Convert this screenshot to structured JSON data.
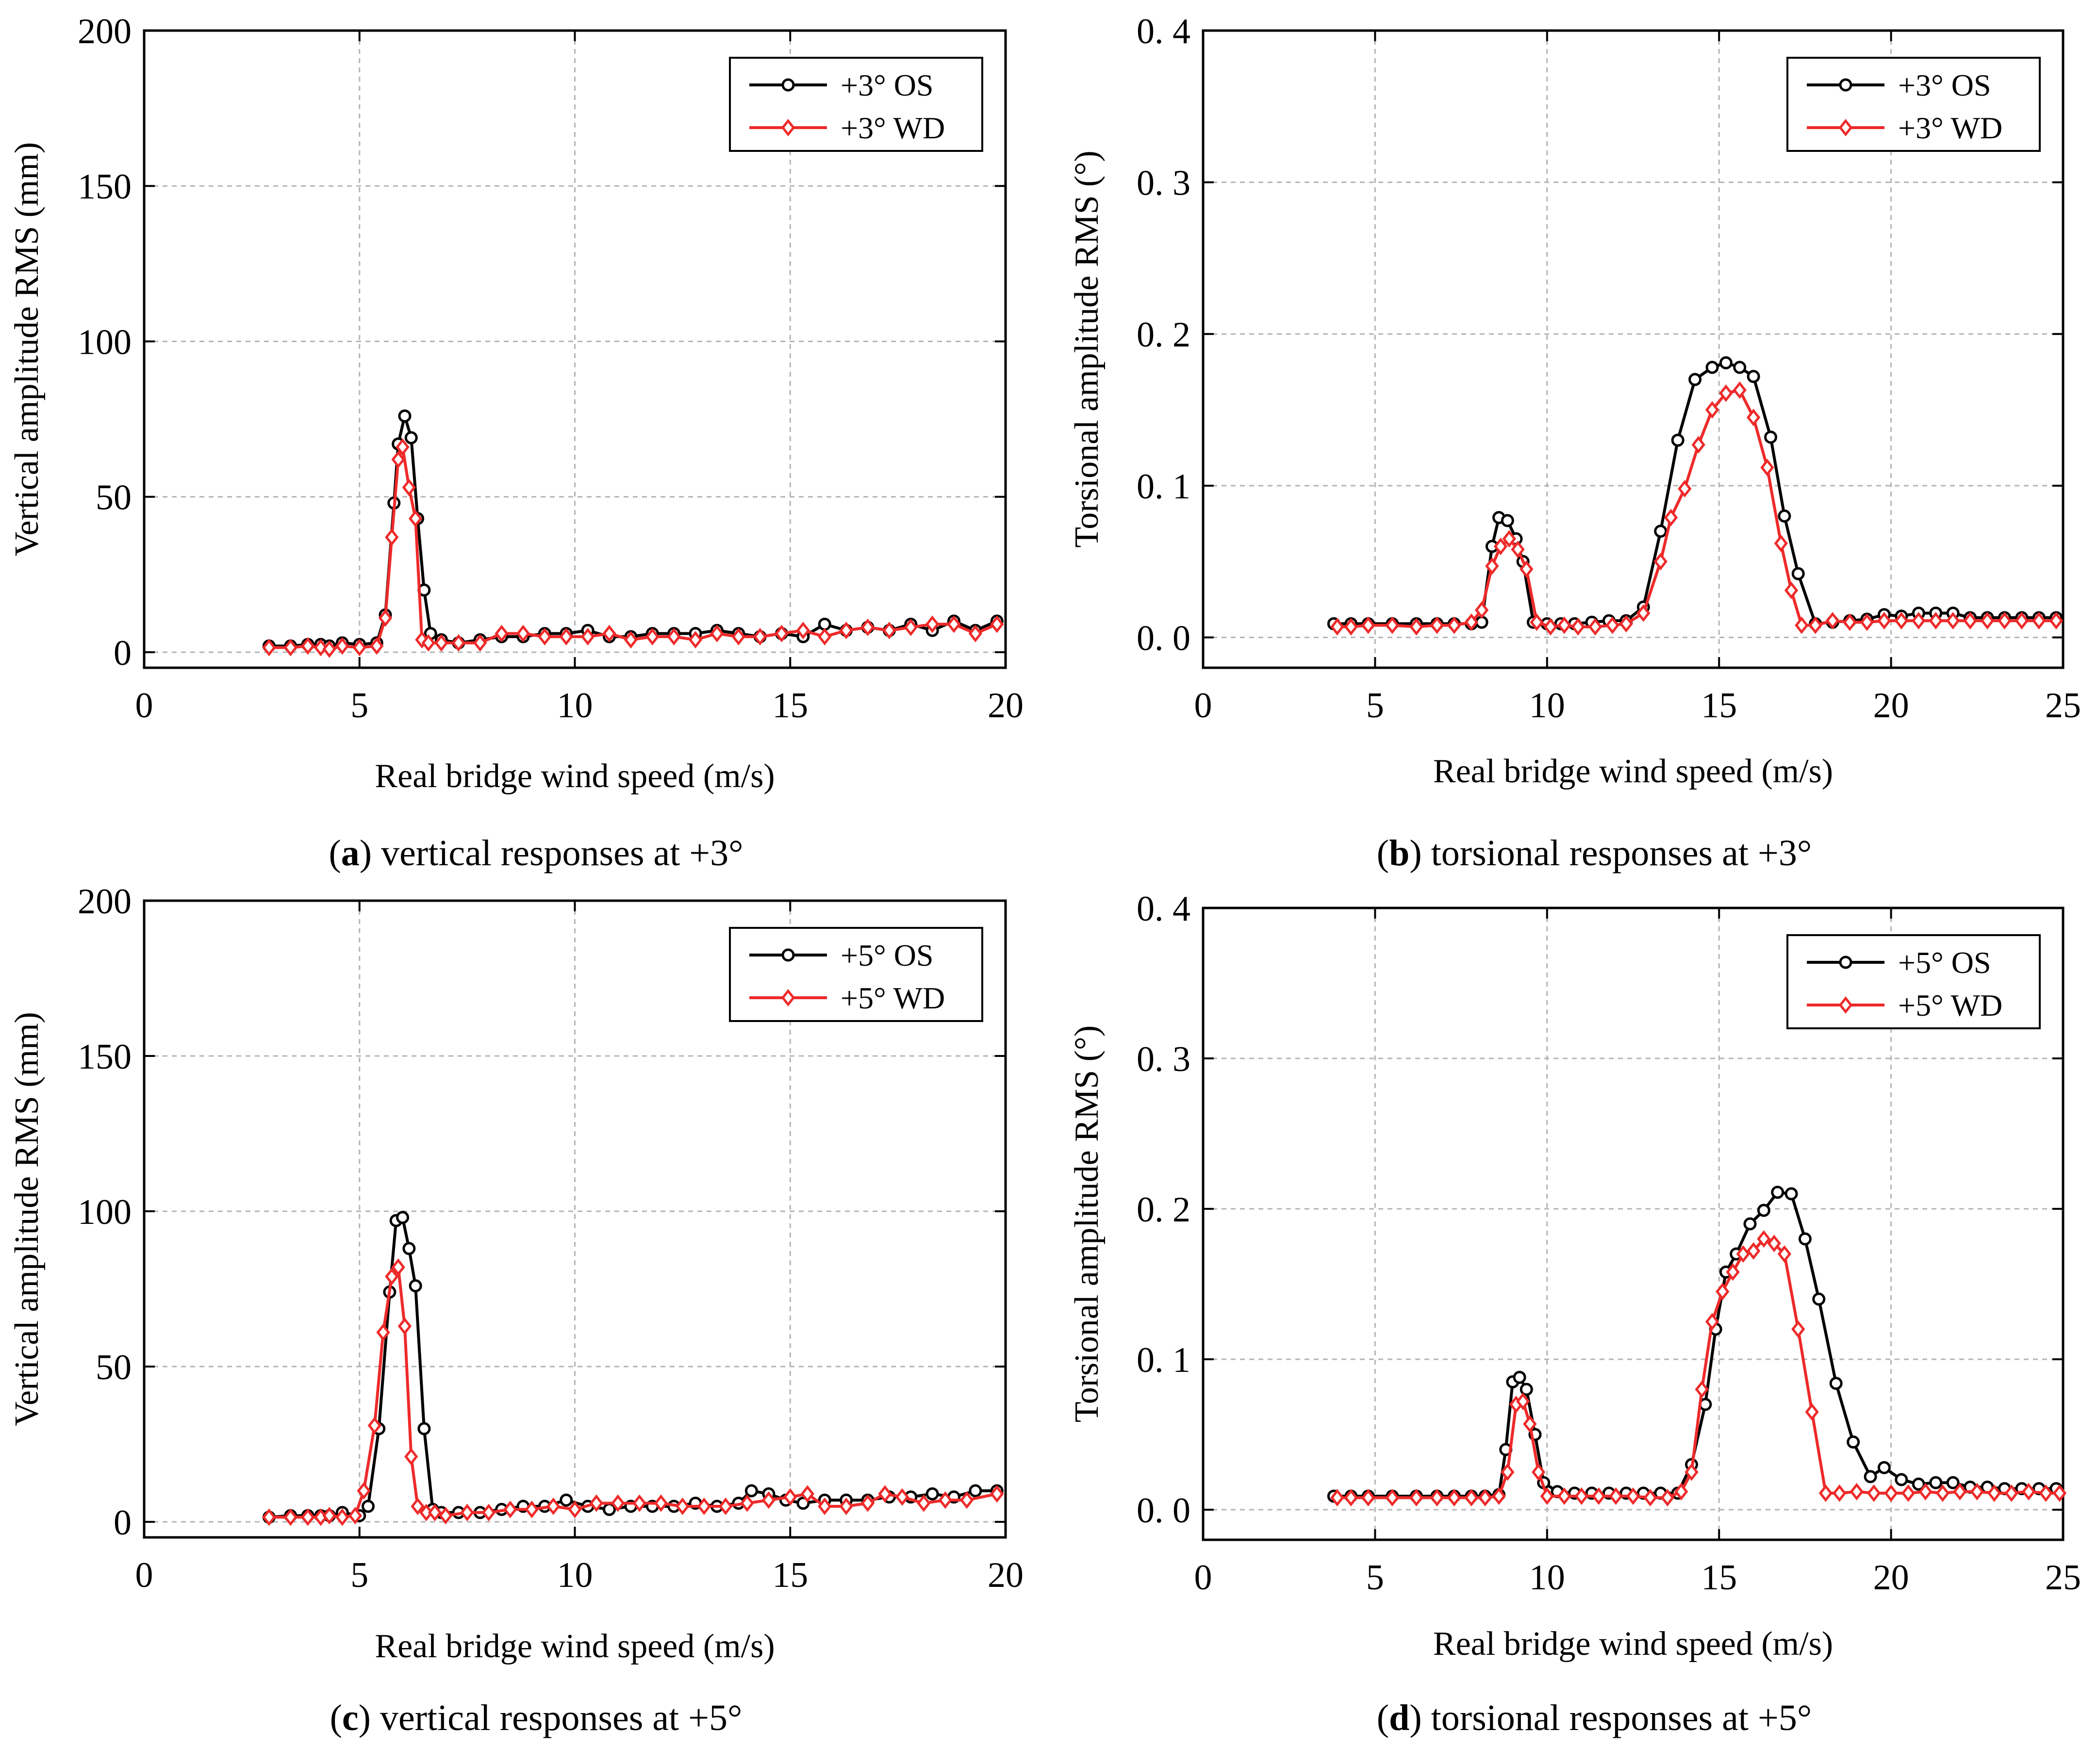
{
  "figure": {
    "colors": {
      "os": "#000000",
      "wd": "#ee2a2a",
      "grid": "#b4b4b4"
    }
  },
  "chart_data": [
    {
      "id": "a",
      "type": "line",
      "caption": {
        "letter": "a",
        "text": "vertical responses at +3°"
      },
      "xlabel": "Real bridge wind speed (m/s)",
      "ylabel": "Vertical amplitude RMS (mm)",
      "xlim": [
        0,
        20
      ],
      "ylim": [
        -5,
        200
      ],
      "xticks": [
        0,
        5,
        10,
        15,
        20
      ],
      "yticks": [
        0,
        50,
        100,
        150,
        200
      ],
      "ytick_labels": [
        "0",
        "50",
        "100",
        "150",
        "200"
      ],
      "grid": true,
      "legend": "top-right",
      "series": [
        {
          "name": "+3° OS",
          "color": "#000000",
          "marker": "circle",
          "x": [
            2.9,
            3.4,
            3.8,
            4.1,
            4.3,
            4.6,
            5.0,
            5.4,
            5.6,
            5.8,
            5.9,
            6.05,
            6.2,
            6.35,
            6.5,
            6.65,
            6.9,
            7.3,
            7.8,
            8.3,
            8.8,
            9.3,
            9.8,
            10.3,
            10.8,
            11.3,
            11.8,
            12.3,
            12.8,
            13.3,
            13.8,
            14.3,
            14.8,
            15.3,
            15.8,
            16.3,
            16.8,
            17.3,
            17.8,
            18.3,
            18.8,
            19.3,
            19.8
          ],
          "y": [
            2,
            2,
            2.5,
            2.5,
            2,
            3,
            2.5,
            3,
            12,
            48,
            67,
            76,
            69,
            43,
            20,
            6,
            4,
            3,
            4,
            5,
            5,
            6,
            6,
            7,
            5,
            5,
            6,
            6,
            6,
            7,
            6,
            5,
            6,
            5,
            9,
            7,
            8,
            7,
            9,
            7,
            10,
            7,
            10
          ]
        },
        {
          "name": "+3° WD",
          "color": "#ee2a2a",
          "marker": "diamond",
          "x": [
            2.9,
            3.4,
            3.8,
            4.1,
            4.3,
            4.6,
            5.0,
            5.4,
            5.6,
            5.75,
            5.9,
            6.0,
            6.15,
            6.3,
            6.45,
            6.6,
            6.9,
            7.3,
            7.8,
            8.3,
            8.8,
            9.3,
            9.8,
            10.3,
            10.8,
            11.3,
            11.8,
            12.3,
            12.8,
            13.3,
            13.8,
            14.3,
            14.8,
            15.3,
            15.8,
            16.3,
            16.8,
            17.3,
            17.8,
            18.3,
            18.8,
            19.3,
            19.8
          ],
          "y": [
            1.5,
            1.5,
            2,
            1.5,
            1,
            2,
            1.5,
            2,
            11,
            37,
            62,
            66,
            53,
            43,
            4,
            3,
            3,
            3,
            3,
            6,
            6,
            5,
            5,
            5,
            6,
            4,
            5,
            5,
            4,
            6,
            5,
            5,
            6,
            7,
            5,
            7,
            8,
            7,
            8,
            9,
            9,
            6,
            9
          ]
        }
      ]
    },
    {
      "id": "b",
      "type": "line",
      "caption": {
        "letter": "b",
        "text": "torsional responses at +3°"
      },
      "xlabel": "Real bridge wind speed (m/s)",
      "ylabel": "Torsional amplitude RMS (°)",
      "xlim": [
        0,
        25
      ],
      "ylim": [
        -0.02,
        0.4
      ],
      "xticks": [
        0,
        5,
        10,
        15,
        20,
        25
      ],
      "yticks": [
        0,
        0.1,
        0.2,
        0.3,
        0.4
      ],
      "ytick_labels": [
        "0. 0",
        "0. 1",
        "0. 2",
        "0. 3",
        "0. 4"
      ],
      "grid": true,
      "legend": "top-right",
      "series": [
        {
          "name": "+3° OS",
          "color": "#000000",
          "marker": "circle",
          "x": [
            3.8,
            4.3,
            4.8,
            5.5,
            6.2,
            6.8,
            7.3,
            7.8,
            8.1,
            8.4,
            8.6,
            8.85,
            9.1,
            9.3,
            9.6,
            10.0,
            10.4,
            10.8,
            11.3,
            11.8,
            12.3,
            12.8,
            13.3,
            13.8,
            14.3,
            14.8,
            15.2,
            15.6,
            16.0,
            16.5,
            16.9,
            17.3,
            17.8,
            18.3,
            18.8,
            19.3,
            19.8,
            20.3,
            20.8,
            21.3,
            21.8,
            22.3,
            22.8,
            23.3,
            23.8,
            24.3,
            24.8
          ],
          "y": [
            0.009,
            0.009,
            0.009,
            0.009,
            0.009,
            0.009,
            0.009,
            0.009,
            0.01,
            0.06,
            0.079,
            0.077,
            0.065,
            0.05,
            0.01,
            0.009,
            0.009,
            0.009,
            0.01,
            0.011,
            0.011,
            0.02,
            0.07,
            0.13,
            0.17,
            0.178,
            0.181,
            0.178,
            0.172,
            0.132,
            0.08,
            0.042,
            0.009,
            0.01,
            0.011,
            0.012,
            0.015,
            0.014,
            0.016,
            0.016,
            0.016,
            0.013,
            0.013,
            0.013,
            0.013,
            0.013,
            0.013
          ]
        },
        {
          "name": "+3° WD",
          "color": "#ee2a2a",
          "marker": "diamond",
          "x": [
            3.9,
            4.3,
            4.8,
            5.5,
            6.2,
            6.8,
            7.3,
            7.8,
            8.1,
            8.4,
            8.65,
            8.9,
            9.15,
            9.4,
            9.7,
            10.1,
            10.5,
            10.9,
            11.4,
            11.9,
            12.3,
            12.8,
            13.3,
            13.6,
            14.0,
            14.4,
            14.8,
            15.2,
            15.6,
            16.0,
            16.4,
            16.8,
            17.1,
            17.4,
            17.8,
            18.3,
            18.8,
            19.3,
            19.8,
            20.3,
            20.8,
            21.3,
            21.8,
            22.3,
            22.8,
            23.3,
            23.8,
            24.3,
            24.8
          ],
          "y": [
            0.007,
            0.007,
            0.008,
            0.008,
            0.007,
            0.008,
            0.008,
            0.01,
            0.018,
            0.047,
            0.06,
            0.065,
            0.058,
            0.045,
            0.01,
            0.007,
            0.008,
            0.007,
            0.007,
            0.008,
            0.009,
            0.016,
            0.05,
            0.079,
            0.098,
            0.127,
            0.15,
            0.161,
            0.163,
            0.145,
            0.112,
            0.062,
            0.031,
            0.008,
            0.008,
            0.011,
            0.01,
            0.01,
            0.011,
            0.011,
            0.011,
            0.011,
            0.011,
            0.011,
            0.011,
            0.011,
            0.011,
            0.011,
            0.011
          ]
        }
      ]
    },
    {
      "id": "c",
      "type": "line",
      "caption": {
        "letter": "c",
        "text": "vertical responses at +5°"
      },
      "xlabel": "Real bridge wind speed (m/s)",
      "ylabel": "Vertical amplitude RMS (mm)",
      "xlim": [
        0,
        20
      ],
      "ylim": [
        -5,
        200
      ],
      "xticks": [
        0,
        5,
        10,
        15,
        20
      ],
      "yticks": [
        0,
        50,
        100,
        150,
        200
      ],
      "ytick_labels": [
        "0",
        "50",
        "100",
        "150",
        "200"
      ],
      "grid": true,
      "legend": "top-right",
      "series": [
        {
          "name": "+5° OS",
          "color": "#000000",
          "marker": "circle",
          "x": [
            2.9,
            3.4,
            3.8,
            4.1,
            4.3,
            4.6,
            5.0,
            5.2,
            5.45,
            5.7,
            5.85,
            6.0,
            6.15,
            6.3,
            6.5,
            6.7,
            6.9,
            7.3,
            7.8,
            8.3,
            8.8,
            9.3,
            9.8,
            10.3,
            10.8,
            11.3,
            11.8,
            12.3,
            12.8,
            13.3,
            13.8,
            14.1,
            14.5,
            14.9,
            15.3,
            15.8,
            16.3,
            16.8,
            17.3,
            17.8,
            18.3,
            18.8,
            19.3,
            19.8
          ],
          "y": [
            1.5,
            2,
            2,
            2,
            2,
            3,
            2,
            5,
            30,
            74,
            97,
            98,
            88,
            76,
            30,
            4,
            3,
            3,
            3,
            4,
            5,
            5,
            7,
            5,
            4,
            5,
            5,
            5,
            6,
            5,
            6,
            10,
            9,
            7,
            6,
            7,
            7,
            7,
            8,
            8,
            9,
            8,
            10,
            10
          ]
        },
        {
          "name": "+5° WD",
          "color": "#ee2a2a",
          "marker": "diamond",
          "x": [
            2.9,
            3.4,
            3.8,
            4.1,
            4.3,
            4.6,
            4.9,
            5.1,
            5.35,
            5.55,
            5.75,
            5.9,
            6.05,
            6.2,
            6.35,
            6.55,
            6.75,
            7.0,
            7.5,
            8.0,
            8.5,
            9.0,
            9.5,
            10.0,
            10.5,
            11.0,
            11.5,
            12.0,
            12.5,
            13.0,
            13.5,
            14.0,
            14.5,
            15.0,
            15.4,
            15.8,
            16.3,
            16.8,
            17.2,
            17.6,
            18.1,
            18.6,
            19.1,
            19.8
          ],
          "y": [
            1.5,
            1.5,
            1.5,
            1.5,
            2,
            1.5,
            2,
            10,
            31,
            61,
            79,
            82,
            63,
            21,
            5,
            3,
            3,
            2,
            3,
            3,
            4,
            4,
            5,
            4,
            6,
            6,
            6,
            6,
            5,
            5,
            5,
            6,
            7,
            8,
            9,
            5,
            5,
            6,
            9,
            8,
            6,
            7,
            7,
            9
          ]
        }
      ]
    },
    {
      "id": "d",
      "type": "line",
      "caption": {
        "letter": "d",
        "text": "torsional responses at +5°"
      },
      "xlabel": "Real bridge wind speed (m/s)",
      "ylabel": "Torsional amplitude RMS (°)",
      "xlim": [
        0,
        25
      ],
      "ylim": [
        -0.02,
        0.4
      ],
      "xticks": [
        0,
        5,
        10,
        15,
        20,
        25
      ],
      "yticks": [
        0,
        0.1,
        0.2,
        0.3,
        0.4
      ],
      "ytick_labels": [
        "0. 0",
        "0. 1",
        "0. 2",
        "0. 3",
        "0. 4"
      ],
      "grid": true,
      "legend": "top-right",
      "series": [
        {
          "name": "+5° OS",
          "color": "#000000",
          "marker": "circle",
          "x": [
            3.8,
            4.3,
            4.8,
            5.5,
            6.2,
            6.8,
            7.3,
            7.8,
            8.2,
            8.6,
            8.8,
            9.0,
            9.2,
            9.4,
            9.65,
            9.9,
            10.3,
            10.8,
            11.3,
            11.8,
            12.3,
            12.8,
            13.3,
            13.8,
            14.2,
            14.6,
            14.9,
            15.2,
            15.5,
            15.9,
            16.3,
            16.7,
            17.1,
            17.5,
            17.9,
            18.4,
            18.9,
            19.4,
            19.8,
            20.3,
            20.8,
            21.3,
            21.8,
            22.3,
            22.8,
            23.3,
            23.8,
            24.3,
            24.8
          ],
          "y": [
            0.009,
            0.009,
            0.009,
            0.009,
            0.009,
            0.009,
            0.009,
            0.009,
            0.009,
            0.01,
            0.04,
            0.085,
            0.088,
            0.08,
            0.05,
            0.018,
            0.012,
            0.011,
            0.011,
            0.011,
            0.011,
            0.011,
            0.011,
            0.011,
            0.03,
            0.07,
            0.12,
            0.158,
            0.17,
            0.19,
            0.199,
            0.211,
            0.21,
            0.18,
            0.14,
            0.084,
            0.045,
            0.022,
            0.028,
            0.02,
            0.017,
            0.018,
            0.018,
            0.015,
            0.015,
            0.014,
            0.014,
            0.014,
            0.014
          ]
        },
        {
          "name": "+5° WD",
          "color": "#ee2a2a",
          "marker": "diamond",
          "x": [
            3.9,
            4.3,
            4.8,
            5.5,
            6.2,
            6.8,
            7.3,
            7.8,
            8.2,
            8.6,
            8.85,
            9.1,
            9.3,
            9.5,
            9.75,
            10.0,
            10.5,
            11.0,
            11.5,
            12.0,
            12.5,
            13.0,
            13.5,
            13.9,
            14.2,
            14.5,
            14.8,
            15.1,
            15.4,
            15.7,
            16.0,
            16.3,
            16.6,
            16.9,
            17.3,
            17.7,
            18.1,
            18.5,
            19.0,
            19.5,
            20.0,
            20.5,
            21.0,
            21.5,
            22.0,
            22.5,
            23.0,
            23.5,
            24.0,
            24.5,
            24.9
          ],
          "y": [
            0.008,
            0.008,
            0.008,
            0.008,
            0.008,
            0.008,
            0.008,
            0.008,
            0.008,
            0.009,
            0.025,
            0.07,
            0.072,
            0.057,
            0.025,
            0.009,
            0.009,
            0.009,
            0.009,
            0.009,
            0.009,
            0.008,
            0.008,
            0.012,
            0.025,
            0.08,
            0.125,
            0.145,
            0.158,
            0.17,
            0.172,
            0.18,
            0.177,
            0.17,
            0.12,
            0.065,
            0.011,
            0.011,
            0.012,
            0.011,
            0.011,
            0.011,
            0.012,
            0.011,
            0.012,
            0.012,
            0.011,
            0.011,
            0.012,
            0.011,
            0.011
          ]
        }
      ]
    }
  ]
}
